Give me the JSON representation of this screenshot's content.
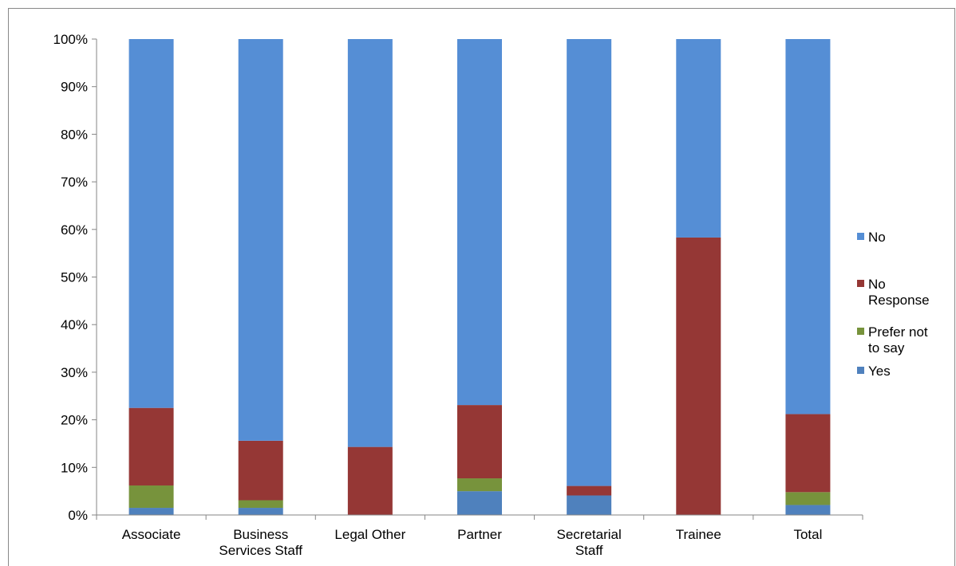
{
  "chart_data": {
    "type": "bar",
    "stacked": true,
    "percent_stacked": true,
    "categories": [
      [
        "Associate"
      ],
      [
        "Business",
        "Services Staff"
      ],
      [
        "Legal Other"
      ],
      [
        "Partner"
      ],
      [
        "Secretarial",
        "Staff"
      ],
      [
        "Trainee"
      ],
      [
        "Total"
      ]
    ],
    "series": [
      {
        "name": "Yes",
        "color": "#4f81bd",
        "values": [
          1.5,
          1.5,
          0,
          5.0,
          4.1,
          0,
          2.1
        ]
      },
      {
        "name": "Prefer not to say",
        "color": "#77933c",
        "values": [
          4.7,
          1.6,
          0,
          2.7,
          0,
          0,
          2.7
        ]
      },
      {
        "name": "No Response",
        "color": "#953735",
        "values": [
          16.3,
          12.5,
          14.3,
          15.4,
          2.0,
          58.3,
          16.4
        ]
      },
      {
        "name": "No",
        "color": "#558ed5",
        "values": [
          77.5,
          84.4,
          85.7,
          76.9,
          93.9,
          41.7,
          78.8
        ]
      }
    ],
    "legend_entries": [
      {
        "series": 3,
        "lines": [
          "No"
        ]
      },
      {
        "series": 2,
        "lines": [
          "No",
          "Response"
        ]
      },
      {
        "series": 1,
        "lines": [
          "Prefer not",
          "to say"
        ]
      },
      {
        "series": 0,
        "lines": [
          "Yes"
        ]
      }
    ],
    "y_ticks": [
      "0%",
      "10%",
      "20%",
      "30%",
      "40%",
      "50%",
      "60%",
      "70%",
      "80%",
      "90%",
      "100%"
    ],
    "ylim": [
      0,
      100
    ],
    "grid": false,
    "legend_position": "right",
    "title": "",
    "xlabel": "",
    "ylabel": ""
  }
}
